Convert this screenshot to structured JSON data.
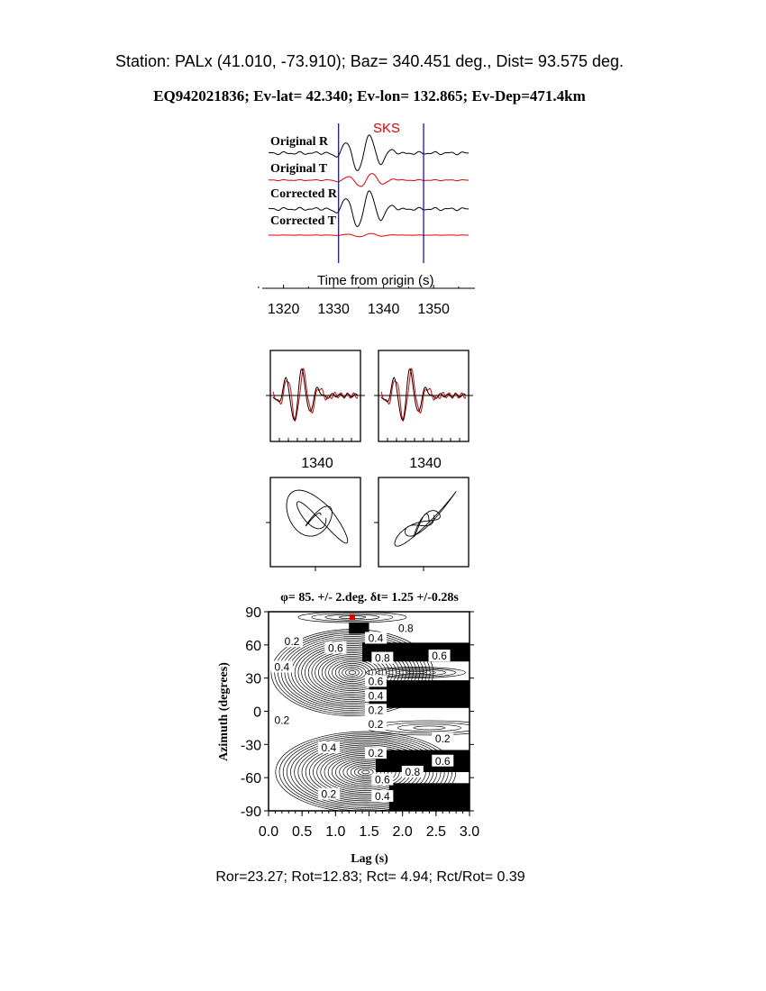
{
  "header": {
    "station_line": "Station: PALx (41.010,  -73.910); Baz=  340.451 deg., Dist=   93.575 deg.",
    "event_line": "EQ942021836; Ev-lat=  42.340; Ev-lon= 132.865; Ev-Dep=471.4km"
  },
  "colors": {
    "trace_r": "#000000",
    "trace_t": "#dd0000",
    "window": "#0000cc",
    "phase": "#dd0000"
  },
  "chart_data": [
    {
      "type": "line",
      "phase_label": "SKS",
      "trace_labels": [
        "Original R",
        "Original T",
        "Corrected R",
        "Corrected T"
      ],
      "xlabel": "Time from origin (s)",
      "xticks": [
        "1320",
        "1330",
        "1340",
        "1350"
      ],
      "xlim": [
        1317,
        1357
      ],
      "window": [
        1331,
        1348
      ]
    },
    {
      "type": "line",
      "panels": [
        "original",
        "corrected"
      ],
      "xticks": [
        "1340",
        "1340"
      ]
    },
    {
      "type": "scatter",
      "panels": [
        "particle-motion-original",
        "particle-motion-corrected"
      ]
    },
    {
      "type": "heatmap",
      "title": "φ= 85. +/- 2.deg. δt= 1.25 +/-0.28s",
      "xlabel": "Lag (s)",
      "ylabel": "Azimuth (degrees)",
      "xticks": [
        "0.0",
        "0.5",
        "1.0",
        "1.5",
        "2.0",
        "2.5",
        "3.0"
      ],
      "yticks": [
        "90",
        "60",
        "30",
        "0",
        "-30",
        "-60",
        "-90"
      ],
      "xlim": [
        0,
        3
      ],
      "ylim": [
        -90,
        90
      ],
      "best_fit": {
        "lag": 1.25,
        "azimuth": 85
      },
      "contour_labels": [
        "0.2",
        "0.2",
        "0.4",
        "0.6",
        "0.8",
        "0.6",
        "0.4",
        "0.8",
        "0.6",
        "0.4",
        "0.2",
        "0.2",
        "0.2",
        "0.4",
        "0.2",
        "0.6",
        "0.8",
        "0.6",
        "0.4",
        "0.2"
      ]
    }
  ],
  "footer": {
    "ratios": "Ror=23.27; Rot=12.83; Rct= 4.94; Rct/Rot= 0.39"
  }
}
